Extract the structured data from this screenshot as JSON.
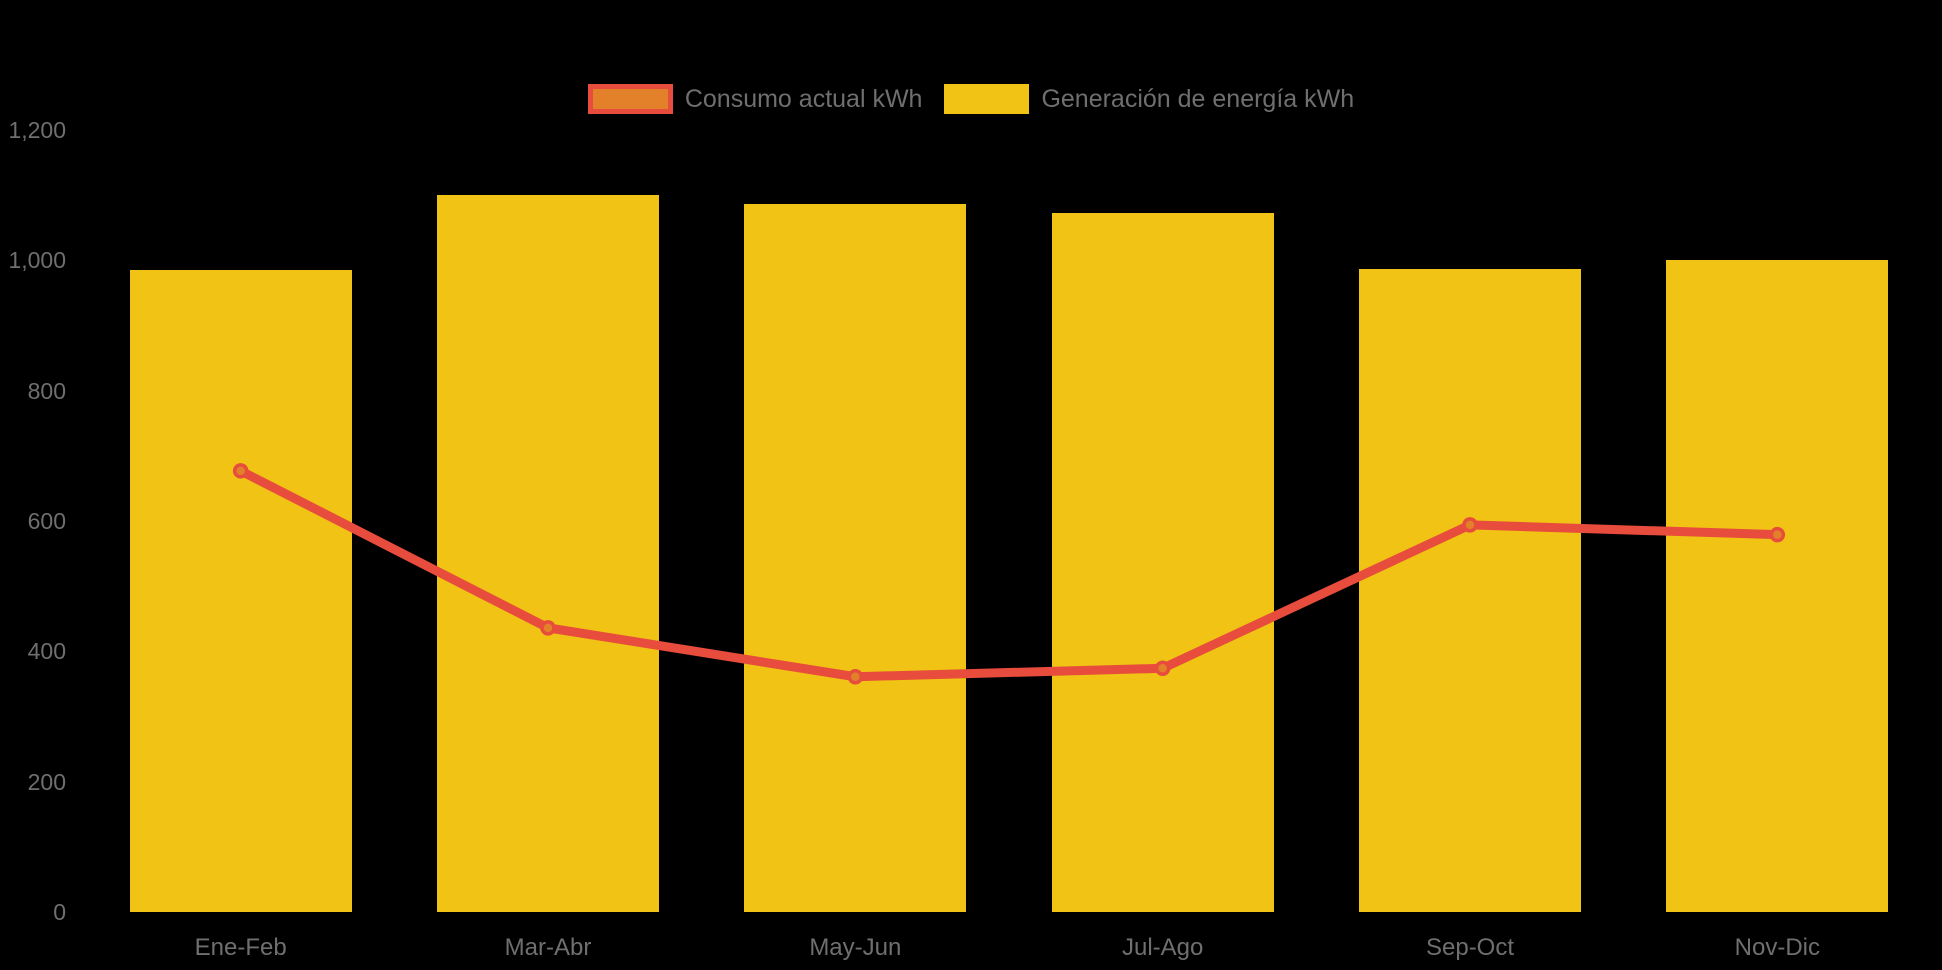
{
  "legend": {
    "items": [
      {
        "label": "Consumo actual kWh",
        "swatch_fill": "#e2812a",
        "swatch_border": "#e74c3c"
      },
      {
        "label": "Generación de energía kWh",
        "swatch_fill": "#f0c314",
        "swatch_border": "#f0c314"
      }
    ]
  },
  "colors": {
    "background": "#000000",
    "bar": "#f0c314",
    "line": "#e74c3c",
    "marker_fill": "#e2812a",
    "marker_stroke": "#e74c3c",
    "axis_text": "#6f6f6f"
  },
  "chart_data": {
    "type": "bar",
    "subtype": "bar-with-line-overlay",
    "title": "",
    "xlabel": "",
    "ylabel": "",
    "categories": [
      "Ene-Feb",
      "Mar-Abr",
      "May-Jun",
      "Jul-Ago",
      "Sep-Oct",
      "Nov-Dic"
    ],
    "series": [
      {
        "name": "Consumo actual kWh",
        "type": "line",
        "color": "#e74c3c",
        "marker_fill": "#e2812a",
        "values": [
          677,
          436,
          361,
          374,
          594,
          579
        ]
      },
      {
        "name": "Generación de energía kWh",
        "type": "bar",
        "color": "#f0c314",
        "values": [
          985,
          1100,
          1086,
          1072,
          986,
          1001
        ]
      }
    ],
    "ylim": [
      0,
      1200
    ],
    "yticks": [
      0,
      200,
      400,
      600,
      800,
      1000,
      1200
    ],
    "ytick_labels": [
      "0",
      "200",
      "400",
      "600",
      "800",
      "1,000",
      "1,200"
    ],
    "grid": false,
    "legend_position": "top-center"
  }
}
